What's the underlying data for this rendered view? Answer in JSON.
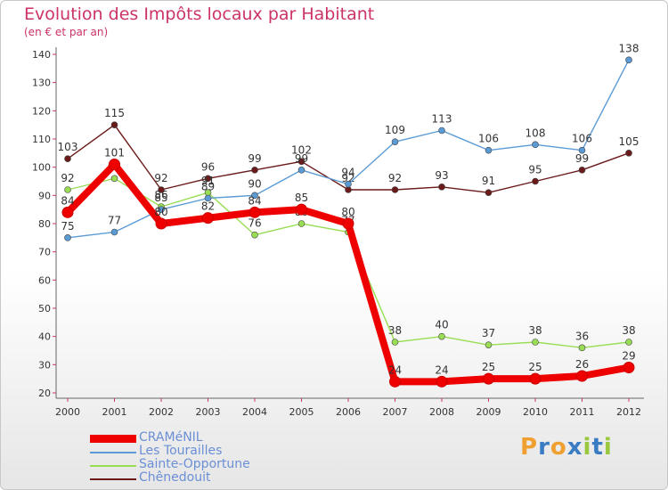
{
  "chart_data": {
    "type": "line",
    "title": "Evolution des Impôts locaux par Habitant",
    "subtitle": "(en € et par an)",
    "xlabel": "",
    "ylabel": "",
    "x": [
      "2000",
      "2001",
      "2002",
      "2003",
      "2004",
      "2005",
      "2006",
      "2007",
      "2008",
      "2009",
      "2010",
      "2011",
      "2012"
    ],
    "ylim": [
      20,
      140
    ],
    "yticks": [
      20,
      30,
      40,
      50,
      60,
      70,
      80,
      90,
      100,
      110,
      120,
      130,
      140
    ],
    "grid": false,
    "legend_position": "bottom-left",
    "series": [
      {
        "name": "Chênedouit",
        "color": "#6b1a1a",
        "values": [
          103,
          115,
          92,
          96,
          99,
          102,
          92,
          92,
          93,
          91,
          95,
          99,
          105
        ]
      },
      {
        "name": "Sainte-Opportune",
        "color": "#99dd55",
        "values": [
          92,
          96,
          86,
          91,
          76,
          80,
          77,
          38,
          40,
          37,
          38,
          36,
          38
        ]
      },
      {
        "name": "Les Tourailles",
        "color": "#5b9bd5",
        "values": [
          75,
          77,
          85,
          89,
          90,
          99,
          94,
          109,
          113,
          106,
          108,
          106,
          138
        ]
      },
      {
        "name": "CRAMéNIL",
        "color": "#ee0000",
        "values": [
          84,
          101,
          80,
          82,
          84,
          85,
          80,
          24,
          24,
          25,
          25,
          26,
          29
        ]
      }
    ],
    "legend": [
      "CRAMéNIL",
      "Les Tourailles",
      "Sainte-Opportune",
      "Chênedouit"
    ]
  },
  "logo": {
    "text": "Proxiti",
    "letters": [
      "P",
      "r",
      "o",
      "x",
      "i",
      "t",
      "i"
    ],
    "colors": [
      "#f0a030",
      "#3a7cc4",
      "#f0a030",
      "#3a7cc4",
      "#9ac83c",
      "#3a7cc4",
      "#9ac83c"
    ]
  }
}
